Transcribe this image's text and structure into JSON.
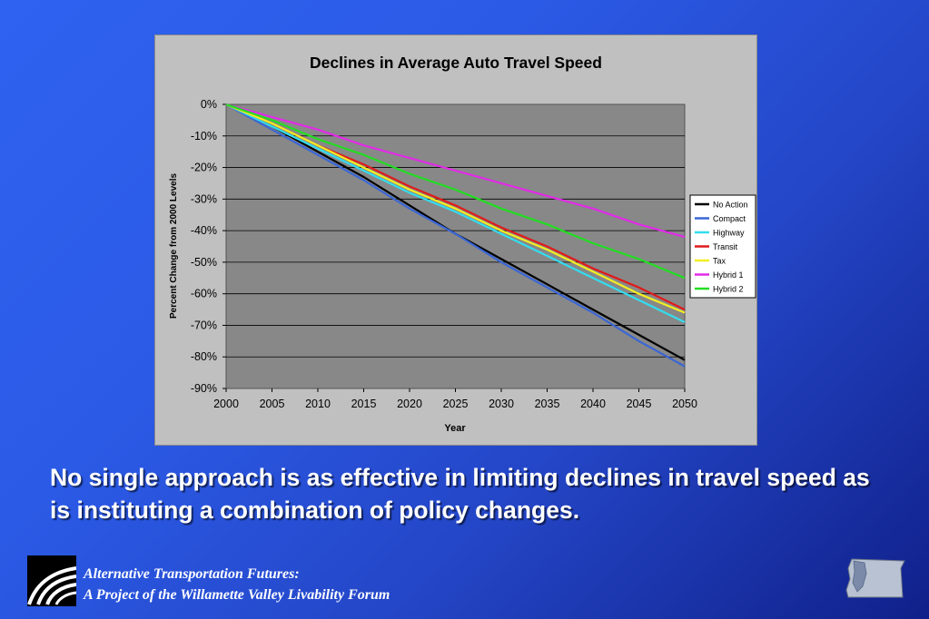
{
  "caption": "No single approach is as effective in limiting declines in travel speed as is instituting a combination of policy changes.",
  "footer": {
    "line1": "Alternative Transportation Futures:",
    "line2": "A Project of the Willamette Valley Livability Forum"
  },
  "chart_data": {
    "type": "line",
    "title": "Declines in Average Auto Travel Speed",
    "xlabel": "Year",
    "ylabel": "Percent Change from 2000 Levels",
    "x": [
      2000,
      2005,
      2010,
      2015,
      2020,
      2025,
      2030,
      2035,
      2040,
      2045,
      2050
    ],
    "ylim": [
      -90,
      0
    ],
    "yticks": [
      0,
      -10,
      -20,
      -30,
      -40,
      -50,
      -60,
      -70,
      -80,
      -90
    ],
    "ytick_labels": [
      "0%",
      "-10%",
      "-20%",
      "-30%",
      "-40%",
      "-50%",
      "-60%",
      "-70%",
      "-80%",
      "-90%"
    ],
    "grid": true,
    "legend": "right",
    "series": [
      {
        "name": "No Action",
        "color": "#000000",
        "values": [
          0,
          -7,
          -15,
          -23,
          -32,
          -41,
          -49,
          -57,
          -65,
          -73,
          -81
        ]
      },
      {
        "name": "Compact",
        "color": "#3a66d6",
        "values": [
          0,
          -8,
          -16,
          -24,
          -33,
          -41,
          -50,
          -58,
          -66,
          -75,
          -83
        ]
      },
      {
        "name": "Highway",
        "color": "#33ddee",
        "values": [
          0,
          -7,
          -14,
          -21,
          -28,
          -34,
          -41,
          -48,
          -55,
          -62,
          -69
        ]
      },
      {
        "name": "Transit",
        "color": "#e01b1b",
        "values": [
          0,
          -6,
          -13,
          -19,
          -26,
          -32,
          -39,
          -45,
          -52,
          -58,
          -65
        ]
      },
      {
        "name": "Tax",
        "color": "#f3ee22",
        "values": [
          0,
          -6,
          -13,
          -20,
          -27,
          -33,
          -40,
          -46,
          -53,
          -60,
          -66
        ]
      },
      {
        "name": "Hybrid 1",
        "color": "#e22ae8",
        "values": [
          0,
          -4,
          -8,
          -13,
          -17,
          -21,
          -25,
          -29,
          -33,
          -38,
          -42
        ]
      },
      {
        "name": "Hybrid 2",
        "color": "#22dd22",
        "values": [
          0,
          -5,
          -11,
          -16,
          -22,
          -27,
          -33,
          -38,
          -44,
          -49,
          -55
        ]
      }
    ]
  }
}
